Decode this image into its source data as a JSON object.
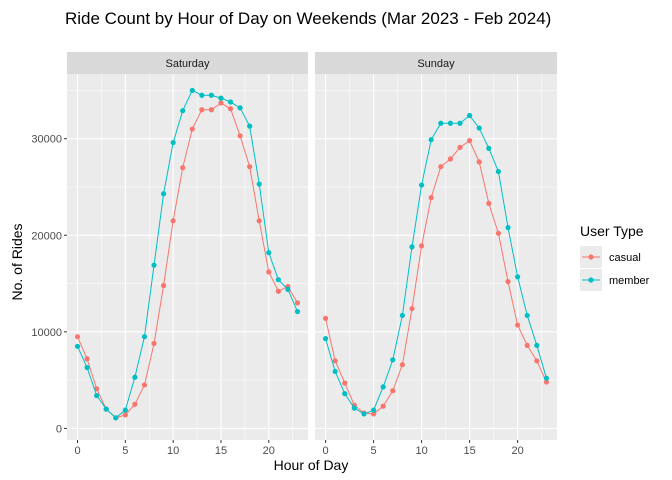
{
  "chart_data": {
    "type": "line",
    "title": "Ride Count by Hour of Day on Weekends (Mar 2023 - Feb 2024)",
    "xlabel": "Hour of Day",
    "ylabel": "No. of Rides",
    "xlim": [
      0,
      23
    ],
    "ylim": [
      0,
      35000
    ],
    "xticks": [
      0,
      5,
      10,
      15,
      20
    ],
    "yticks": [
      0,
      10000,
      20000,
      30000
    ],
    "grid": true,
    "legend_title": "User Type",
    "legend_position": "right",
    "facets": [
      "Saturday",
      "Sunday"
    ],
    "x": [
      0,
      1,
      2,
      3,
      4,
      5,
      6,
      7,
      8,
      9,
      10,
      11,
      12,
      13,
      14,
      15,
      16,
      17,
      18,
      19,
      20,
      21,
      22,
      23
    ],
    "series": [
      {
        "name": "casual",
        "color": "#F8766D",
        "values": {
          "Saturday": [
            9500,
            7200,
            4100,
            2000,
            1100,
            1400,
            2500,
            4500,
            8800,
            14800,
            21500,
            27000,
            31000,
            33000,
            33000,
            33700,
            33100,
            30300,
            27100,
            21500,
            16200,
            14200,
            14700,
            13000
          ],
          "Sunday": [
            11400,
            7000,
            4700,
            2400,
            1600,
            1500,
            2300,
            3900,
            6600,
            12400,
            18900,
            23900,
            27100,
            27900,
            29100,
            29800,
            27600,
            23300,
            20200,
            15200,
            10700,
            8600,
            7000,
            4800
          ]
        }
      },
      {
        "name": "member",
        "color": "#00BFC4",
        "values": {
          "Saturday": [
            8500,
            6300,
            3400,
            2000,
            1100,
            1900,
            5300,
            9500,
            16900,
            24300,
            29600,
            32900,
            35000,
            34500,
            34500,
            34200,
            33800,
            33200,
            31300,
            25300,
            18200,
            15400,
            14400,
            12100
          ],
          "Sunday": [
            9300,
            5900,
            3600,
            2100,
            1500,
            1900,
            4300,
            7100,
            11700,
            18800,
            25200,
            29900,
            31600,
            31600,
            31600,
            32400,
            31100,
            29000,
            26600,
            20800,
            15700,
            11700,
            8600,
            5200
          ]
        }
      }
    ]
  }
}
